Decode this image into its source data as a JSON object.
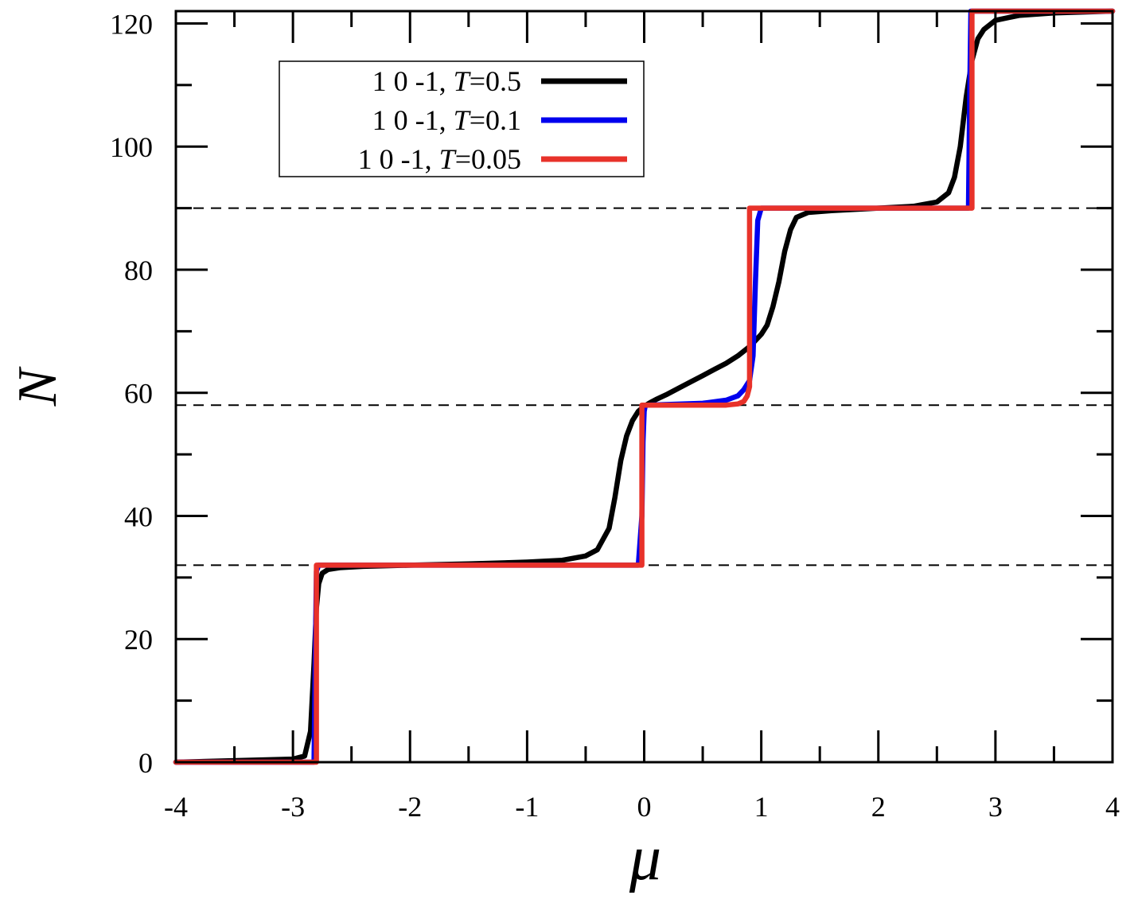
{
  "chart_data": {
    "type": "line",
    "title": "",
    "xlabel": "μ",
    "ylabel": "N",
    "xlim": [
      -4,
      4
    ],
    "ylim": [
      0,
      122
    ],
    "xticks": [
      -4,
      -3,
      -2,
      -1,
      0,
      1,
      2,
      3,
      4
    ],
    "xtick_labels": [
      "-4",
      "-3",
      "-2",
      "-1",
      "0",
      "1",
      "2",
      "3",
      "4"
    ],
    "yticks": [
      0,
      20,
      40,
      60,
      80,
      100,
      120
    ],
    "ytick_labels": [
      "0",
      "20",
      "40",
      "60",
      "80",
      "100",
      "120"
    ],
    "grid": false,
    "legend_position": "top-left",
    "reference_lines": [
      32,
      58,
      90
    ],
    "series": [
      {
        "name": "1 0 -1, T=0.5",
        "label_main": "1 0 -1, ",
        "label_var": "T",
        "label_val": "=0.5",
        "color": "#000000",
        "x": [
          -4.0,
          -3.0,
          -2.9,
          -2.85,
          -2.82,
          -2.8,
          -2.78,
          -2.75,
          -2.7,
          -2.6,
          -2.4,
          -2.0,
          -1.5,
          -1.0,
          -0.7,
          -0.5,
          -0.4,
          -0.3,
          -0.25,
          -0.2,
          -0.15,
          -0.1,
          -0.05,
          0.0,
          0.05,
          0.1,
          0.2,
          0.3,
          0.4,
          0.5,
          0.6,
          0.7,
          0.8,
          0.9,
          0.95,
          1.0,
          1.05,
          1.1,
          1.15,
          1.2,
          1.25,
          1.3,
          1.4,
          1.6,
          2.0,
          2.3,
          2.5,
          2.6,
          2.65,
          2.7,
          2.75,
          2.8,
          2.85,
          2.9,
          3.0,
          3.2,
          3.5,
          4.0
        ],
        "y": [
          0.0,
          0.5,
          1.0,
          5.0,
          16.0,
          25.0,
          29.0,
          30.7,
          31.3,
          31.6,
          31.8,
          32.0,
          32.2,
          32.5,
          32.8,
          33.5,
          34.5,
          38.0,
          43.0,
          49.0,
          53.0,
          55.5,
          57.0,
          57.8,
          58.4,
          58.9,
          59.8,
          60.8,
          61.8,
          62.8,
          63.8,
          64.8,
          66.0,
          67.5,
          68.5,
          69.5,
          71.0,
          74.0,
          78.0,
          83.0,
          86.5,
          88.5,
          89.3,
          89.6,
          90.0,
          90.3,
          91.0,
          92.5,
          95.0,
          100.0,
          108.0,
          114.0,
          117.5,
          119.0,
          120.5,
          121.3,
          121.7,
          122.0
        ]
      },
      {
        "name": "1 0 -1, T=0.1",
        "label_main": "1 0 -1, ",
        "label_var": "T",
        "label_val": "=0.1",
        "color": "#0000ee",
        "x": [
          -4.0,
          -2.82,
          -2.81,
          -2.8,
          -2.78,
          -1.0,
          -0.05,
          -0.02,
          -0.01,
          0.0,
          0.01,
          0.03,
          0.5,
          0.7,
          0.8,
          0.85,
          0.9,
          0.93,
          0.95,
          0.97,
          1.0,
          2.0,
          2.77,
          2.78,
          2.79,
          4.0
        ],
        "y": [
          0.0,
          0.0,
          16.0,
          31.0,
          32.0,
          32.0,
          32.0,
          40.0,
          52.0,
          57.0,
          58.0,
          58.0,
          58.3,
          58.8,
          59.5,
          60.5,
          62.0,
          66.0,
          78.0,
          88.0,
          90.0,
          90.0,
          90.0,
          108.0,
          122.0,
          122.0
        ]
      },
      {
        "name": "1 0 -1, T=0.05",
        "label_main": "1 0 -1, ",
        "label_var": "T",
        "label_val": "=0.05",
        "color": "#e8322a",
        "x": [
          -4.0,
          -2.8,
          -2.8,
          -0.02,
          -0.02,
          0.7,
          0.8,
          0.85,
          0.88,
          0.9,
          0.9,
          2.8,
          2.8,
          4.0
        ],
        "y": [
          0.0,
          0.0,
          32.0,
          32.0,
          58.0,
          58.0,
          58.2,
          58.6,
          59.5,
          61.0,
          90.0,
          90.0,
          122.0,
          122.0
        ]
      }
    ]
  }
}
